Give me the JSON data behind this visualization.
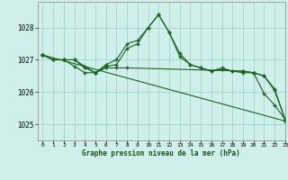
{
  "title": "Graphe pression niveau de la mer (hPa)",
  "bg_color": "#cff0ea",
  "grid_color": "#a8d8ce",
  "line_color": "#1a6020",
  "xlim": [
    -0.5,
    23
  ],
  "ylim": [
    1024.5,
    1028.8
  ],
  "yticks": [
    1025,
    1026,
    1027,
    1028
  ],
  "xticks": [
    0,
    1,
    2,
    3,
    4,
    5,
    6,
    7,
    8,
    9,
    10,
    11,
    12,
    13,
    14,
    15,
    16,
    17,
    18,
    19,
    20,
    21,
    22,
    23
  ],
  "series": [
    {
      "x": [
        0,
        1,
        2,
        3,
        4,
        5,
        6,
        7,
        8,
        9,
        10,
        11,
        12,
        13,
        14,
        15,
        16,
        17,
        18,
        19,
        20,
        21,
        22,
        23
      ],
      "y": [
        1027.15,
        1027.0,
        1027.0,
        1026.8,
        1026.6,
        1026.6,
        1026.8,
        1026.85,
        1027.35,
        1027.5,
        1028.0,
        1028.4,
        1027.85,
        1027.1,
        1026.85,
        1026.75,
        1026.65,
        1026.7,
        1026.65,
        1026.6,
        1026.6,
        1026.5,
        1026.05,
        1025.15
      ]
    },
    {
      "x": [
        0,
        1,
        2,
        3,
        4,
        5,
        6,
        7,
        8,
        9,
        10,
        11,
        12,
        13,
        14,
        15,
        16,
        17,
        18,
        19,
        20,
        21,
        22,
        23
      ],
      "y": [
        1027.15,
        1027.0,
        1027.0,
        1027.0,
        1026.75,
        1026.6,
        1026.85,
        1027.0,
        1027.5,
        1027.6,
        1028.0,
        1028.4,
        1027.85,
        1027.2,
        1026.85,
        1026.75,
        1026.65,
        1026.75,
        1026.65,
        1026.65,
        1026.6,
        1025.95,
        1025.6,
        1025.15
      ]
    },
    {
      "x": [
        0,
        23
      ],
      "y": [
        1027.15,
        1025.1
      ]
    },
    {
      "x": [
        0,
        1,
        2,
        3,
        4,
        5,
        6,
        7,
        8,
        19,
        20,
        21,
        22,
        23
      ],
      "y": [
        1027.15,
        1027.0,
        1027.0,
        1027.0,
        1026.8,
        1026.6,
        1026.75,
        1026.75,
        1026.75,
        1026.65,
        1026.6,
        1026.5,
        1026.1,
        1025.15
      ]
    }
  ]
}
